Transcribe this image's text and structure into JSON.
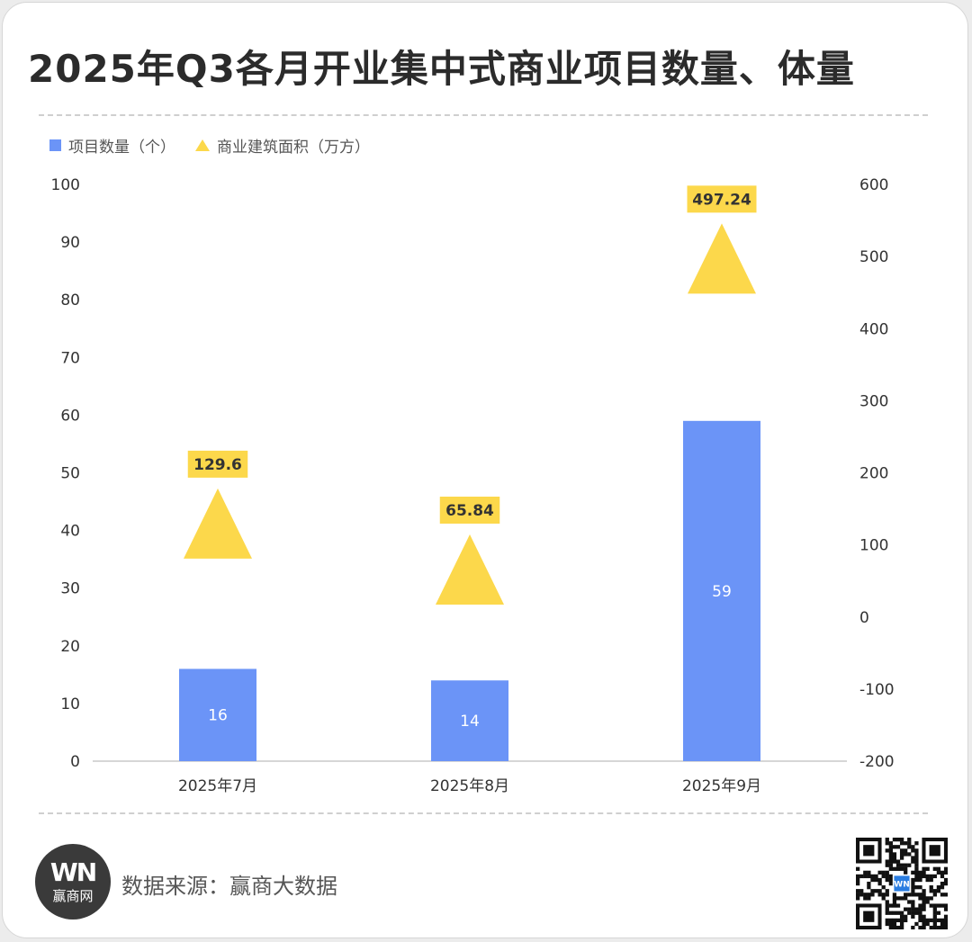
{
  "title": "2025年Q3各月开业集中式商业项目数量、体量",
  "legend": {
    "bar_label": "项目数量（个）",
    "triangle_label": "商业建筑面积（万方）"
  },
  "colors": {
    "bar": "#6b94f7",
    "triangle": "#fcd84b",
    "label_bg": "#fcd84b"
  },
  "chart_data": {
    "type": "bar",
    "categories": [
      "2025年7月",
      "2025年8月",
      "2025年9月"
    ],
    "series": [
      {
        "name": "项目数量（个）",
        "type": "bar",
        "axis": "left",
        "values": [
          16,
          14,
          59
        ],
        "labels": [
          "16",
          "14",
          "59"
        ]
      },
      {
        "name": "商业建筑面积（万方）",
        "type": "scatter",
        "marker": "triangle",
        "axis": "right",
        "values": [
          129.6,
          65.84,
          497.24
        ],
        "labels": [
          "129.6",
          "65.84",
          "497.24"
        ]
      }
    ],
    "y_left": {
      "min": 0,
      "max": 100,
      "ticks": [
        "0",
        "10",
        "20",
        "30",
        "40",
        "50",
        "60",
        "70",
        "80",
        "90",
        "100"
      ]
    },
    "y_right": {
      "min": -200,
      "max": 600,
      "ticks": [
        "-200",
        "-100",
        "0",
        "100",
        "200",
        "300",
        "400",
        "500",
        "600"
      ]
    },
    "grid": false,
    "legend_position": "top-left"
  },
  "footer": {
    "logo_text": "WN",
    "logo_sub": "赢商网",
    "source": "数据来源：赢商大数据",
    "qr_badge": "WN"
  }
}
